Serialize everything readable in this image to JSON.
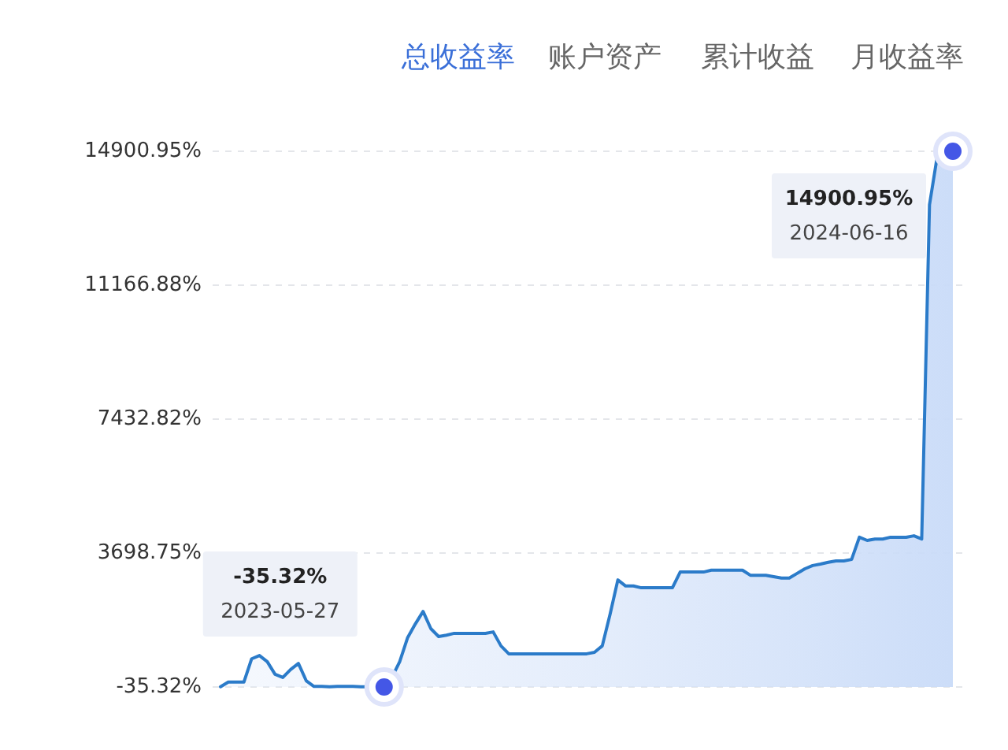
{
  "chart_data": {
    "type": "area",
    "categories": [
      null,
      null,
      null,
      null,
      null,
      null,
      null,
      null,
      null,
      null,
      null,
      null,
      null,
      null,
      null,
      null,
      null,
      null,
      null,
      null,
      null,
      null,
      null,
      null,
      null,
      null,
      null,
      null,
      null,
      null,
      null,
      null,
      null,
      null,
      null,
      null,
      null,
      null,
      null,
      null,
      null,
      null,
      null,
      null,
      null,
      null,
      null,
      null,
      null,
      null,
      null,
      null,
      null,
      null,
      null,
      null,
      null,
      null,
      null,
      null,
      null,
      null,
      null,
      null,
      null,
      null,
      null,
      null,
      null,
      null,
      null,
      null,
      null,
      null,
      null,
      null,
      null,
      null,
      null,
      null,
      null,
      null,
      null,
      null,
      null,
      null,
      null,
      null,
      null,
      null,
      null,
      null,
      null,
      null,
      null
    ],
    "series": [
      {
        "color": "#2b7bc9",
        "values": [
          -30,
          100,
          100,
          100,
          750,
          840,
          670,
          320,
          230,
          450,
          620,
          140,
          -20,
          -20,
          -30,
          -20,
          -20,
          -20,
          -30,
          -30,
          -30,
          -35.32,
          230,
          670,
          1330,
          1720,
          2070,
          1590,
          1370,
          1410,
          1460,
          1460,
          1460,
          1460,
          1460,
          1500,
          1110,
          890,
          890,
          890,
          890,
          890,
          890,
          890,
          890,
          890,
          890,
          890,
          930,
          1110,
          1990,
          2950,
          2780,
          2780,
          2730,
          2730,
          2730,
          2730,
          2730,
          3170,
          3170,
          3170,
          3170,
          3220,
          3220,
          3220,
          3220,
          3220,
          3080,
          3080,
          3080,
          3040,
          3000,
          3000,
          3130,
          3260,
          3350,
          3390,
          3440,
          3480,
          3480,
          3520,
          4140,
          4050,
          4090,
          4090,
          4140,
          4140,
          4140,
          4180,
          4090,
          13410,
          14770,
          14810,
          14900.95
        ]
      }
    ],
    "ylim": [
      -35.32,
      14900.95
    ],
    "yticks": [
      {
        "value": -35.32,
        "label": "-35.32%"
      },
      {
        "value": 3698.75,
        "label": "3698.75%"
      },
      {
        "value": 7432.82,
        "label": "7432.82%"
      },
      {
        "value": 11166.88,
        "label": "11166.88%"
      },
      {
        "value": 14900.95,
        "label": "14900.95%"
      }
    ],
    "grid": "y",
    "tick_labels": "y",
    "annotations": [
      "总收益率",
      "账户资产",
      "累计收益",
      "月收益率",
      "-35.32%",
      "2023-05-27",
      "14900.95%",
      "2024-06-16"
    ]
  }
}
